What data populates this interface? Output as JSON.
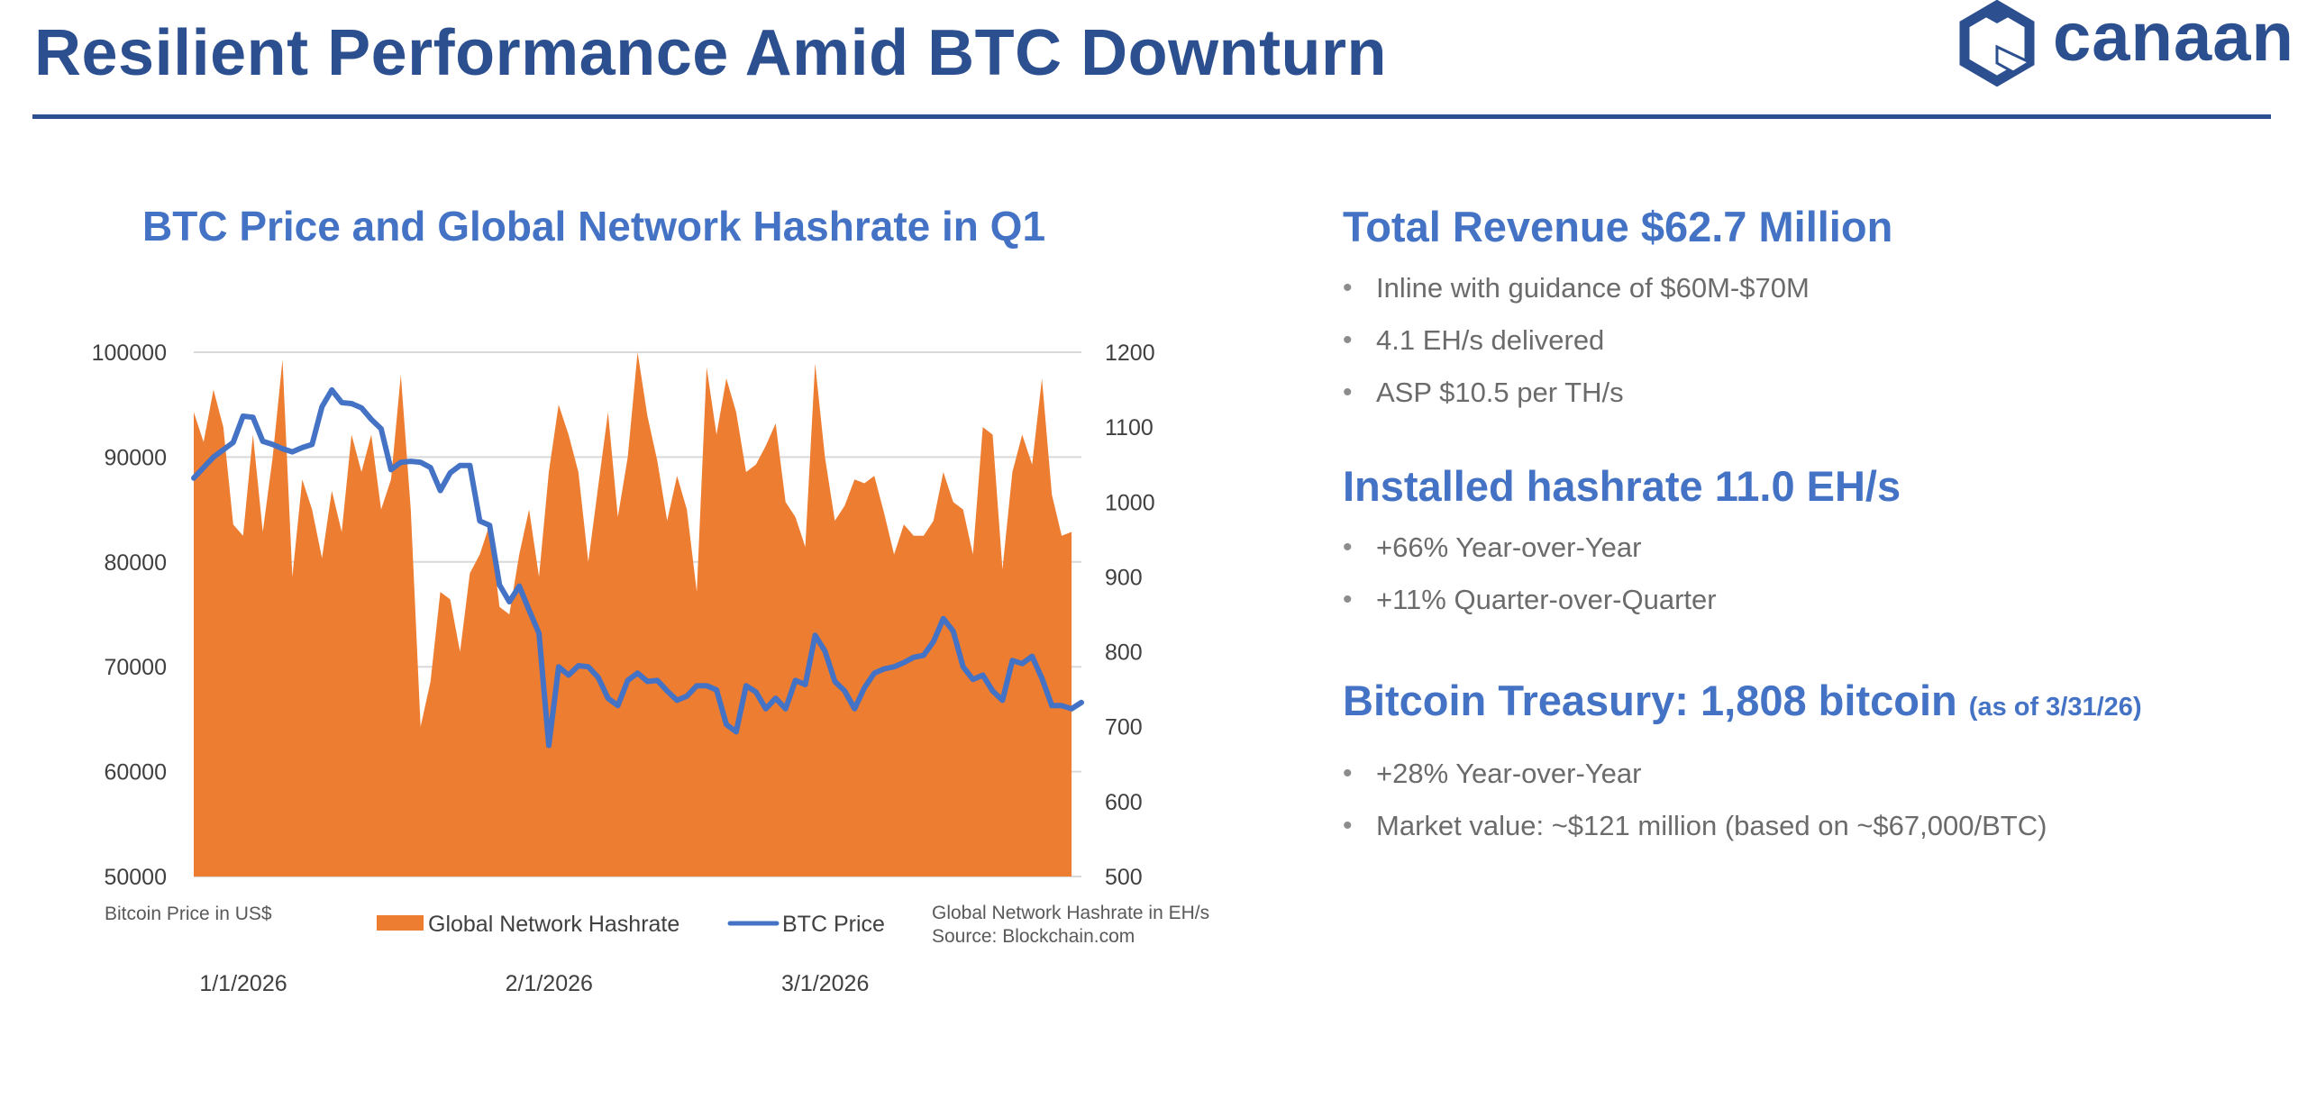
{
  "slide": {
    "title": "Resilient Performance Amid BTC Downturn",
    "logo_text": "canaan",
    "logo_icon": "hexagon-logo-icon",
    "accent_color": "#2c4f8f"
  },
  "chart_data": {
    "type": "area",
    "title": "BTC Price and Global Network Hashrate in Q1",
    "y_left_label": "Bitcoin Price in US$",
    "y_right_label": "Global Network Hashrate in EH/s",
    "source": "Source: Blockchain.com",
    "y_left_range": [
      50000,
      100000
    ],
    "y_left_ticks": [
      "100000",
      "90000",
      "80000",
      "70000",
      "60000",
      "50000"
    ],
    "y_right_range": [
      500,
      1200
    ],
    "y_right_ticks": [
      "1200",
      "1100",
      "1000",
      "900",
      "800",
      "700",
      "600",
      "500"
    ],
    "x_ticks": [
      {
        "label": "1/1/2026",
        "index": 0
      },
      {
        "label": "2/1/2026",
        "index": 31
      },
      {
        "label": "3/1/2026",
        "index": 59
      }
    ],
    "grid": "horizontal",
    "legend_position": "bottom",
    "series": [
      {
        "name": "Global Network Hashrate",
        "kind": "area",
        "axis": "right",
        "color": "#ed7d31",
        "values": [
          1120,
          1080,
          1150,
          1100,
          970,
          955,
          1090,
          960,
          1060,
          1190,
          900,
          1030,
          990,
          925,
          1015,
          960,
          1090,
          1040,
          1090,
          990,
          1030,
          1170,
          990,
          700,
          760,
          880,
          870,
          800,
          905,
          930,
          970,
          860,
          850,
          930,
          990,
          900,
          1040,
          1130,
          1090,
          1040,
          920,
          1020,
          1120,
          980,
          1060,
          1200,
          1115,
          1055,
          975,
          1035,
          990,
          880,
          1180,
          1090,
          1165,
          1120,
          1040,
          1050,
          1075,
          1105,
          1000,
          980,
          940,
          1185,
          1060,
          975,
          995,
          1030,
          1025,
          1035,
          985,
          930,
          970,
          955,
          955,
          975,
          1040,
          1000,
          990,
          930,
          1100,
          1090,
          910,
          1040,
          1090,
          1050,
          1165,
          1010,
          955,
          960
        ],
        "end_index": 89
      },
      {
        "name": "BTC Price",
        "kind": "line",
        "axis": "left",
        "color": "#4472c4",
        "values": [
          88000,
          89000,
          90000,
          90700,
          91400,
          93900,
          93800,
          91500,
          91200,
          90800,
          90500,
          90900,
          91200,
          94800,
          96400,
          95200,
          95100,
          94700,
          93600,
          92700,
          88800,
          89500,
          89600,
          89500,
          89000,
          86800,
          88500,
          89200,
          89200,
          83900,
          83500,
          77800,
          76200,
          77700,
          75400,
          73200,
          62500,
          70000,
          69200,
          70100,
          70000,
          69000,
          67000,
          66300,
          68700,
          69400,
          68600,
          68700,
          67700,
          66800,
          67200,
          68200,
          68200,
          67800,
          64500,
          63800,
          68200,
          67600,
          66000,
          67000,
          66000,
          68700,
          68300,
          73000,
          71500,
          68600,
          67700,
          66000,
          68000,
          69400,
          69800,
          70000,
          70400,
          70900,
          71100,
          72400,
          74600,
          73400,
          70000,
          68800,
          69200,
          67700,
          66800,
          70600,
          70300,
          71000,
          68900,
          66300,
          66300,
          66000,
          66600
        ]
      }
    ]
  },
  "panel": {
    "sections": [
      {
        "heading": "Total Revenue $62.7 Million",
        "heading_note": "",
        "bullets": [
          "Inline with guidance of $60M-$70M",
          "4.1 EH/s delivered",
          "ASP $10.5 per TH/s"
        ]
      },
      {
        "heading": "Installed hashrate 11.0 EH/s",
        "heading_note": "",
        "bullets": [
          "+66% Year-over-Year",
          "+11% Quarter-over-Quarter"
        ]
      },
      {
        "heading": "Bitcoin Treasury: 1,808 bitcoin",
        "heading_note": "(as of 3/31/26)",
        "bullets": [
          "+28% Year-over-Year",
          "Market value: ~$121 million (based on ~$67,000/BTC)"
        ]
      }
    ]
  }
}
